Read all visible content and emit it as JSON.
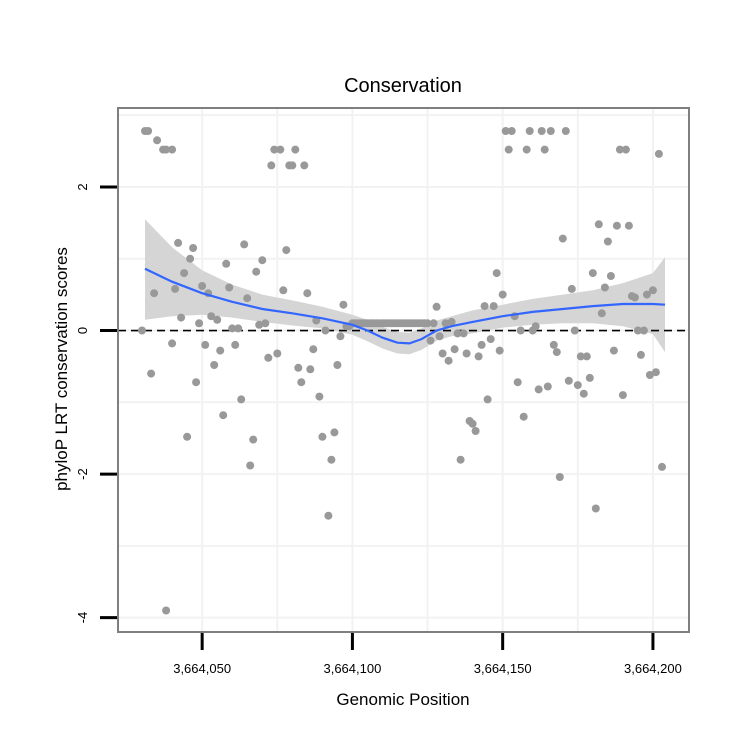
{
  "chart_data": {
    "type": "scatter",
    "title": "Conservation",
    "xlabel": "Genomic Position",
    "ylabel": "phyloP LRT conservation scores",
    "xlim": [
      3664022,
      3664212
    ],
    "ylim": [
      -4.2,
      3.1
    ],
    "x_ticks": [
      {
        "value": 3664050,
        "label": "3,664,050"
      },
      {
        "value": 3664100,
        "label": "3,664,100"
      },
      {
        "value": 3664150,
        "label": "3,664,150"
      },
      {
        "value": 3664200,
        "label": "3,664,200"
      }
    ],
    "y_ticks": [
      {
        "value": -4,
        "label": "-4"
      },
      {
        "value": -2,
        "label": "-2"
      },
      {
        "value": 0,
        "label": "0"
      },
      {
        "value": 2,
        "label": "2"
      }
    ],
    "reference_line": {
      "y": 0,
      "style": "dashed"
    },
    "colors": {
      "points": "#999999",
      "smooth": "#3366ff",
      "ribbon": "#d3d3d3",
      "panel_border": "#7f7f7f",
      "grid": "#f2f2f2",
      "axis": "#000000"
    },
    "smooth": {
      "method": "loess",
      "x": [
        3664031,
        3664040,
        3664050,
        3664060,
        3664070,
        3664080,
        3664090,
        3664100,
        3664105,
        3664110,
        3664115,
        3664119,
        3664123,
        3664128,
        3664133,
        3664140,
        3664150,
        3664160,
        3664170,
        3664180,
        3664190,
        3664200,
        3664204
      ],
      "y": [
        0.86,
        0.68,
        0.52,
        0.4,
        0.3,
        0.24,
        0.17,
        0.08,
        0.0,
        -0.1,
        -0.17,
        -0.18,
        -0.12,
        0.0,
        0.06,
        0.12,
        0.2,
        0.26,
        0.3,
        0.34,
        0.37,
        0.37,
        0.36
      ],
      "lower": [
        0.15,
        0.2,
        0.22,
        0.18,
        0.12,
        0.07,
        0.03,
        -0.06,
        -0.15,
        -0.25,
        -0.32,
        -0.33,
        -0.27,
        -0.14,
        -0.08,
        -0.04,
        0.04,
        0.08,
        0.1,
        0.1,
        0.06,
        -0.05,
        -0.3
      ],
      "upper": [
        1.55,
        1.16,
        0.84,
        0.64,
        0.5,
        0.42,
        0.33,
        0.22,
        0.15,
        0.05,
        -0.02,
        -0.03,
        0.03,
        0.14,
        0.2,
        0.28,
        0.36,
        0.44,
        0.5,
        0.56,
        0.66,
        0.8,
        1.02
      ]
    },
    "points": [
      [
        3664030,
        0.0
      ],
      [
        3664031,
        2.78
      ],
      [
        3664032,
        2.78
      ],
      [
        3664033,
        -0.6
      ],
      [
        3664034,
        0.52
      ],
      [
        3664035,
        2.65
      ],
      [
        3664037,
        2.52
      ],
      [
        3664038,
        2.52
      ],
      [
        3664038,
        -3.9
      ],
      [
        3664040,
        2.52
      ],
      [
        3664040,
        -0.18
      ],
      [
        3664041,
        0.58
      ],
      [
        3664042,
        1.22
      ],
      [
        3664043,
        0.18
      ],
      [
        3664044,
        0.8
      ],
      [
        3664045,
        -1.48
      ],
      [
        3664046,
        1.0
      ],
      [
        3664047,
        1.15
      ],
      [
        3664048,
        -0.72
      ],
      [
        3664049,
        0.1
      ],
      [
        3664050,
        0.62
      ],
      [
        3664051,
        -0.2
      ],
      [
        3664052,
        0.52
      ],
      [
        3664053,
        0.2
      ],
      [
        3664054,
        -0.48
      ],
      [
        3664055,
        0.15
      ],
      [
        3664056,
        -0.28
      ],
      [
        3664057,
        -1.18
      ],
      [
        3664058,
        0.93
      ],
      [
        3664059,
        0.6
      ],
      [
        3664060,
        0.03
      ],
      [
        3664061,
        -0.2
      ],
      [
        3664062,
        0.03
      ],
      [
        3664063,
        -0.96
      ],
      [
        3664064,
        1.2
      ],
      [
        3664065,
        0.45
      ],
      [
        3664066,
        -1.88
      ],
      [
        3664067,
        -1.52
      ],
      [
        3664068,
        0.82
      ],
      [
        3664069,
        0.08
      ],
      [
        3664070,
        0.98
      ],
      [
        3664071,
        0.1
      ],
      [
        3664072,
        -0.38
      ],
      [
        3664073,
        2.3
      ],
      [
        3664074,
        2.52
      ],
      [
        3664075,
        -0.32
      ],
      [
        3664076,
        2.52
      ],
      [
        3664077,
        0.56
      ],
      [
        3664078,
        1.12
      ],
      [
        3664079,
        2.3
      ],
      [
        3664080,
        2.3
      ],
      [
        3664081,
        2.52
      ],
      [
        3664082,
        -0.52
      ],
      [
        3664083,
        -0.72
      ],
      [
        3664084,
        2.3
      ],
      [
        3664085,
        0.52
      ],
      [
        3664086,
        -0.54
      ],
      [
        3664087,
        -0.26
      ],
      [
        3664088,
        0.14
      ],
      [
        3664089,
        -0.92
      ],
      [
        3664090,
        -1.48
      ],
      [
        3664091,
        0.0
      ],
      [
        3664092,
        -2.58
      ],
      [
        3664093,
        -1.8
      ],
      [
        3664094,
        -1.42
      ],
      [
        3664095,
        -0.48
      ],
      [
        3664096,
        -0.08
      ],
      [
        3664097,
        0.36
      ],
      [
        3664098,
        0.06
      ],
      [
        3664099,
        0.06
      ],
      [
        3664100,
        0.1
      ],
      [
        3664101,
        0.1
      ],
      [
        3664102,
        0.1
      ],
      [
        3664103,
        0.1
      ],
      [
        3664104,
        0.1
      ],
      [
        3664105,
        0.1
      ],
      [
        3664106,
        0.1
      ],
      [
        3664107,
        0.1
      ],
      [
        3664108,
        0.1
      ],
      [
        3664109,
        0.1
      ],
      [
        3664110,
        0.1
      ],
      [
        3664111,
        0.1
      ],
      [
        3664112,
        0.1
      ],
      [
        3664113,
        0.1
      ],
      [
        3664114,
        0.1
      ],
      [
        3664115,
        0.1
      ],
      [
        3664116,
        0.1
      ],
      [
        3664117,
        0.1
      ],
      [
        3664118,
        0.1
      ],
      [
        3664119,
        0.1
      ],
      [
        3664120,
        0.1
      ],
      [
        3664121,
        0.1
      ],
      [
        3664122,
        0.1
      ],
      [
        3664123,
        0.1
      ],
      [
        3664124,
        0.1
      ],
      [
        3664125,
        0.1
      ],
      [
        3664126,
        -0.14
      ],
      [
        3664127,
        0.1
      ],
      [
        3664128,
        0.33
      ],
      [
        3664129,
        -0.08
      ],
      [
        3664130,
        -0.32
      ],
      [
        3664131,
        0.1
      ],
      [
        3664132,
        -0.42
      ],
      [
        3664133,
        0.12
      ],
      [
        3664134,
        -0.26
      ],
      [
        3664135,
        -0.04
      ],
      [
        3664136,
        -1.8
      ],
      [
        3664137,
        -0.04
      ],
      [
        3664138,
        -0.32
      ],
      [
        3664139,
        -1.26
      ],
      [
        3664140,
        -1.3
      ],
      [
        3664141,
        -1.4
      ],
      [
        3664142,
        -0.36
      ],
      [
        3664143,
        -0.2
      ],
      [
        3664144,
        0.34
      ],
      [
        3664145,
        -0.96
      ],
      [
        3664146,
        -0.12
      ],
      [
        3664147,
        0.34
      ],
      [
        3664148,
        0.8
      ],
      [
        3664149,
        -0.28
      ],
      [
        3664150,
        0.5
      ],
      [
        3664151,
        2.78
      ],
      [
        3664152,
        2.52
      ],
      [
        3664153,
        2.78
      ],
      [
        3664154,
        0.2
      ],
      [
        3664155,
        -0.72
      ],
      [
        3664156,
        0.0
      ],
      [
        3664157,
        -1.2
      ],
      [
        3664158,
        2.52
      ],
      [
        3664159,
        2.78
      ],
      [
        3664160,
        0.0
      ],
      [
        3664161,
        0.06
      ],
      [
        3664162,
        -0.82
      ],
      [
        3664163,
        2.78
      ],
      [
        3664164,
        2.52
      ],
      [
        3664165,
        -0.78
      ],
      [
        3664166,
        2.78
      ],
      [
        3664167,
        -0.2
      ],
      [
        3664168,
        -0.3
      ],
      [
        3664169,
        -2.04
      ],
      [
        3664170,
        1.28
      ],
      [
        3664171,
        2.78
      ],
      [
        3664172,
        -0.7
      ],
      [
        3664173,
        0.58
      ],
      [
        3664174,
        0.0
      ],
      [
        3664175,
        -0.76
      ],
      [
        3664176,
        -0.36
      ],
      [
        3664177,
        -0.88
      ],
      [
        3664178,
        -0.36
      ],
      [
        3664179,
        -0.66
      ],
      [
        3664180,
        0.8
      ],
      [
        3664181,
        -2.48
      ],
      [
        3664182,
        1.48
      ],
      [
        3664183,
        0.24
      ],
      [
        3664184,
        0.6
      ],
      [
        3664185,
        1.24
      ],
      [
        3664186,
        0.76
      ],
      [
        3664187,
        -0.28
      ],
      [
        3664188,
        1.46
      ],
      [
        3664189,
        2.52
      ],
      [
        3664190,
        -0.9
      ],
      [
        3664191,
        2.52
      ],
      [
        3664192,
        1.46
      ],
      [
        3664193,
        0.48
      ],
      [
        3664194,
        0.46
      ],
      [
        3664195,
        0.0
      ],
      [
        3664196,
        -0.34
      ],
      [
        3664197,
        0.0
      ],
      [
        3664198,
        0.5
      ],
      [
        3664199,
        -0.62
      ],
      [
        3664200,
        0.56
      ],
      [
        3664201,
        -0.58
      ],
      [
        3664202,
        2.46
      ],
      [
        3664203,
        -1.9
      ]
    ]
  }
}
